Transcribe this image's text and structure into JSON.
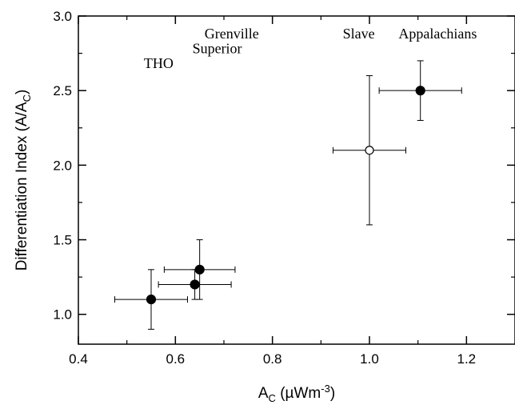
{
  "chart_data": {
    "type": "scatter",
    "title": "",
    "xlabel": {
      "main": "A",
      "sub": "C",
      "unit_pre": " (µWm",
      "sup": "-3",
      "unit_post": ")"
    },
    "ylabel": {
      "main": "Differentiation Index (A/A",
      "sub": "C",
      "post": ")"
    },
    "xlim": [
      0.4,
      1.3
    ],
    "ylim": [
      0.8,
      3.0
    ],
    "xticks": [
      {
        "value": 0.4,
        "label": "0.4"
      },
      {
        "value": 0.6,
        "label": "0.6"
      },
      {
        "value": 0.8,
        "label": "0.8"
      },
      {
        "value": 1.0,
        "label": "1.0"
      },
      {
        "value": 1.2,
        "label": "1.2"
      }
    ],
    "yticks": [
      {
        "value": 1.0,
        "label": "1.0"
      },
      {
        "value": 1.5,
        "label": "1.5"
      },
      {
        "value": 2.0,
        "label": "2.0"
      },
      {
        "value": 2.5,
        "label": "2.5"
      },
      {
        "value": 3.0,
        "label": "3.0"
      }
    ],
    "grid": false,
    "points": [
      {
        "x": 0.55,
        "y": 1.1,
        "x_err": [
          0.475,
          0.625
        ],
        "y_err": [
          0.9,
          1.3
        ],
        "marker": "filled"
      },
      {
        "x": 0.64,
        "y": 1.2,
        "x_err": [
          0.565,
          0.715
        ],
        "y_err": [
          1.1,
          1.3
        ],
        "marker": "filled"
      },
      {
        "x": 0.65,
        "y": 1.3,
        "x_err": [
          0.577,
          0.723
        ],
        "y_err": [
          1.1,
          1.5
        ],
        "marker": "filled"
      },
      {
        "x": 1.0,
        "y": 2.1,
        "x_err": [
          0.925,
          1.075
        ],
        "y_err": [
          1.6,
          2.6
        ],
        "marker": "open"
      },
      {
        "x": 1.105,
        "y": 2.5,
        "x_err": [
          1.02,
          1.19
        ],
        "y_err": [
          2.3,
          2.7
        ],
        "marker": "filled"
      }
    ],
    "annotations": [
      {
        "text": "THO",
        "x": 0.535,
        "y": 2.65
      },
      {
        "text": "Grenville",
        "x": 0.66,
        "y": 2.85
      },
      {
        "text": "Superior",
        "x": 0.635,
        "y": 2.75
      },
      {
        "text": "Slave",
        "x": 0.945,
        "y": 2.85
      },
      {
        "text": "Appalachians",
        "x": 1.06,
        "y": 2.85
      }
    ]
  }
}
